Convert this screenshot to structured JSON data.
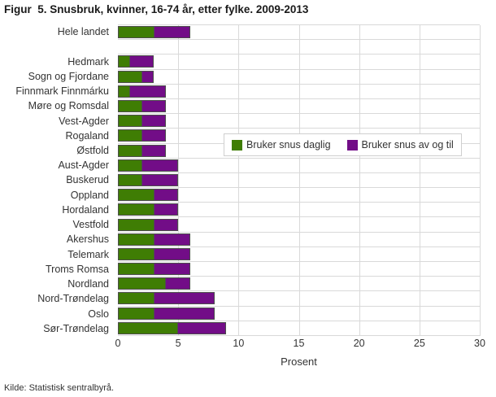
{
  "title": "Figur  5. Snusbruk, kvinner, 16-74 år, etter fylke. 2009-2013",
  "source": "Kilde: Statistisk sentralbyrå.",
  "colors": {
    "daily_green": "#3f7d04",
    "occasional_purple": "#720d87",
    "gridline": "#d9d9d9",
    "text": "#333333",
    "bar_outline": "#4d4d4d"
  },
  "chart_data": {
    "type": "bar",
    "orientation": "horizontal",
    "stacked": true,
    "title": "Figur  5. Snusbruk, kvinner, 16-74 år, etter fylke. 2009-2013",
    "xlabel": "Prosent",
    "ylabel": "",
    "xlim": [
      0,
      30
    ],
    "xticks": [
      0,
      5,
      10,
      15,
      20,
      25,
      30
    ],
    "grid": true,
    "legend": [
      "Bruker snus daglig",
      "Bruker snus av og til"
    ],
    "legend_position": "inside-right",
    "categories": [
      "Hele landet",
      "Hedmark",
      "Sogn og Fjordane",
      "Finnmark Finnmárku",
      "Møre og Romsdal",
      "Vest-Agder",
      "Rogaland",
      "Østfold",
      "Aust-Agder",
      "Buskerud",
      "Oppland",
      "Hordaland",
      "Vestfold",
      "Akershus",
      "Telemark",
      "Troms Romsa",
      "Nordland",
      "Nord-Trøndelag",
      "Oslo",
      "Sør-Trøndelag"
    ],
    "series": [
      {
        "name": "Bruker snus daglig",
        "color": "#3f7d04",
        "values": [
          3,
          1,
          2,
          1,
          2,
          2,
          2,
          2,
          2,
          2,
          3,
          3,
          3,
          3,
          3,
          3,
          4,
          3,
          3,
          5
        ]
      },
      {
        "name": "Bruker snus av og til",
        "color": "#720d87",
        "values": [
          3,
          2,
          1,
          3,
          2,
          2,
          2,
          2,
          3,
          3,
          2,
          2,
          2,
          3,
          3,
          3,
          2,
          5,
          5,
          4
        ]
      }
    ],
    "layout": {
      "gap_after_index": 0
    }
  }
}
